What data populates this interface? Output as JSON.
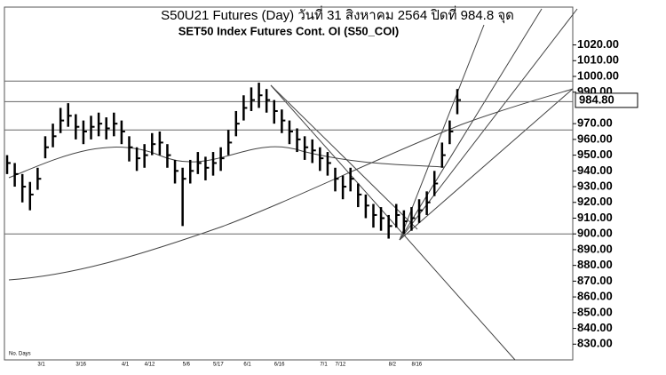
{
  "chart_data": {
    "type": "ohlc",
    "title": "S50U21 Futures (Day) วันที่   31 สิงหาคม   2564 ปิดที่   984.8 จุด",
    "subtitle": "SET50  Index  Futures  Cont.  OI  (S50_COI)",
    "footnote": "No. Days",
    "categories": [
      null,
      null,
      null,
      null,
      "3/1",
      null,
      null,
      null,
      null,
      "3/16",
      null,
      null,
      null,
      null,
      null,
      "4/1",
      null,
      null,
      "4/12",
      null,
      null,
      null,
      null,
      "5/6",
      null,
      null,
      null,
      "5/17",
      null,
      null,
      null,
      "6/1",
      null,
      null,
      null,
      "6/16",
      null,
      null,
      null,
      null,
      null,
      "7/1",
      null,
      "7/12",
      null,
      null,
      null,
      null,
      null,
      null,
      "8/2",
      null,
      null,
      "8/16",
      null,
      null,
      null,
      null,
      null,
      null
    ],
    "series": [
      {
        "name": "high",
        "values": [
          950,
          945,
          938,
          933,
          942,
          962,
          970,
          980,
          983,
          976,
          972,
          975,
          977,
          974,
          977,
          972,
          962,
          955,
          957,
          964,
          965,
          957,
          947,
          942,
          947,
          952,
          949,
          952,
          955,
          966,
          978,
          988,
          993,
          996,
          992,
          985,
          979,
          972,
          967,
          962,
          960,
          955,
          952,
          942,
          937,
          942,
          932,
          925,
          919,
          917,
          912,
          919,
          915,
          917,
          922,
          927,
          940,
          958,
          972,
          992
        ]
      },
      {
        "name": "low",
        "values": [
          938,
          930,
          920,
          915,
          928,
          948,
          955,
          964,
          968,
          960,
          957,
          960,
          962,
          960,
          962,
          957,
          946,
          940,
          942,
          950,
          950,
          942,
          932,
          905,
          932,
          938,
          934,
          937,
          940,
          950,
          962,
          972,
          978,
          980,
          977,
          970,
          964,
          957,
          952,
          947,
          945,
          940,
          937,
          927,
          922,
          927,
          917,
          910,
          904,
          902,
          897,
          904,
          900,
          902,
          907,
          912,
          924,
          942,
          957,
          976
        ]
      },
      {
        "name": "close",
        "values": [
          945,
          938,
          930,
          925,
          935,
          955,
          962,
          972,
          975,
          968,
          965,
          968,
          970,
          967,
          970,
          965,
          955,
          948,
          950,
          957,
          958,
          950,
          940,
          935,
          940,
          945,
          942,
          945,
          948,
          958,
          970,
          980,
          985,
          988,
          985,
          978,
          972,
          965,
          960,
          955,
          953,
          948,
          945,
          935,
          930,
          935,
          925,
          918,
          912,
          910,
          905,
          912,
          908,
          910,
          915,
          920,
          932,
          950,
          965,
          985
        ]
      }
    ],
    "color": "#000000",
    "ylim": [
      820,
      1044
    ],
    "yticks": [
      {
        "value": 830,
        "label": "830.00"
      },
      {
        "value": 840,
        "label": "840.00"
      },
      {
        "value": 850,
        "label": "850.00"
      },
      {
        "value": 860,
        "label": "860.00"
      },
      {
        "value": 870,
        "label": "870.00"
      },
      {
        "value": 880,
        "label": "880.00"
      },
      {
        "value": 890,
        "label": "890.00"
      },
      {
        "value": 900,
        "label": "900.00"
      },
      {
        "value": 910,
        "label": "910.00"
      },
      {
        "value": 920,
        "label": "920.00"
      },
      {
        "value": 930,
        "label": "930.00"
      },
      {
        "value": 940,
        "label": "940.00"
      },
      {
        "value": 950,
        "label": "950.00"
      },
      {
        "value": 960,
        "label": "960.00"
      },
      {
        "value": 970,
        "label": "970.00"
      },
      {
        "value": 990,
        "label": "990.00"
      },
      {
        "value": 1000,
        "label": "1000.00"
      },
      {
        "value": 1010,
        "label": "1010.00"
      },
      {
        "value": 1020,
        "label": "1020.00"
      }
    ],
    "hlines": [
      997,
      984,
      966,
      900
    ],
    "last": {
      "value": 984.8,
      "label": "984.80"
    }
  }
}
